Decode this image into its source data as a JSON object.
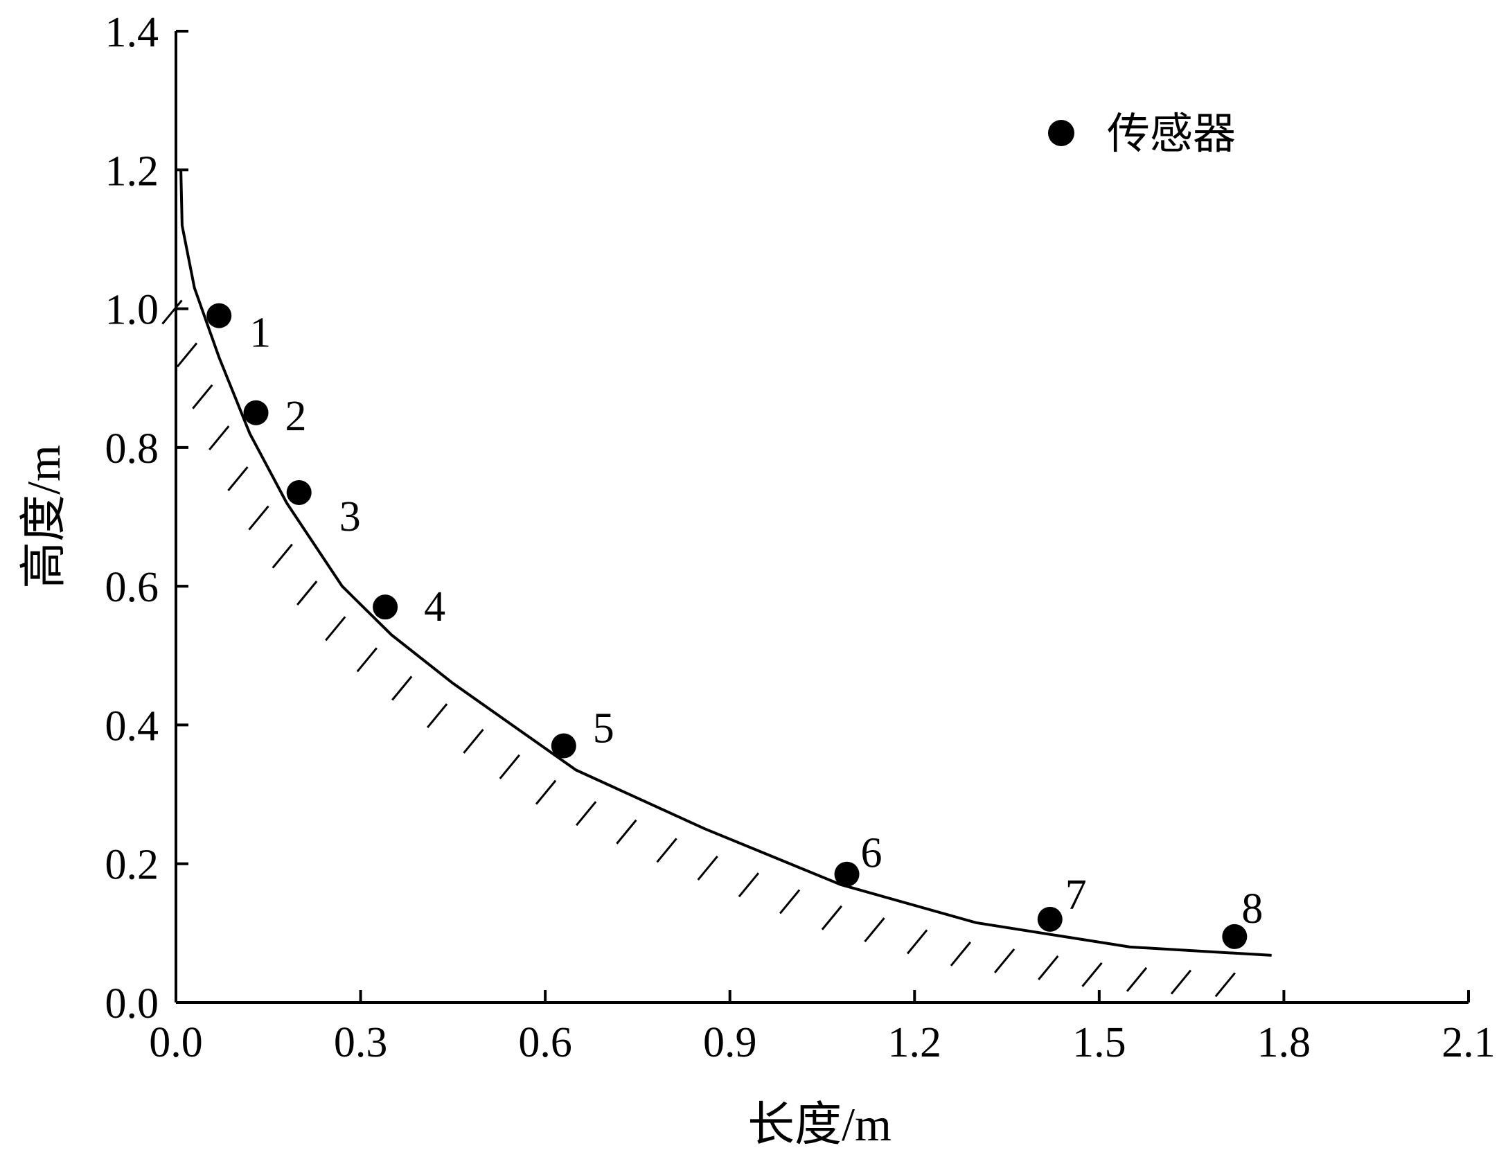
{
  "chart_data": {
    "type": "scatter",
    "xlabel": "长度/m",
    "ylabel": "高度/m",
    "xlim": [
      0,
      2.1
    ],
    "ylim": [
      0,
      1.4
    ],
    "xticks": [
      "0.0",
      "0.3",
      "0.6",
      "0.9",
      "1.2",
      "1.5",
      "1.8",
      "2.1"
    ],
    "yticks": [
      "0.0",
      "0.2",
      "0.4",
      "0.6",
      "0.8",
      "1.0",
      "1.2",
      "1.4"
    ],
    "grid": false,
    "legend": {
      "position": "top-right",
      "label": "传感器"
    },
    "series": [
      {
        "name": "传感器",
        "type": "scatter",
        "points": [
          {
            "label": "1",
            "x": 0.07,
            "y": 0.99
          },
          {
            "label": "2",
            "x": 0.13,
            "y": 0.85
          },
          {
            "label": "3",
            "x": 0.2,
            "y": 0.735
          },
          {
            "label": "4",
            "x": 0.34,
            "y": 0.57
          },
          {
            "label": "5",
            "x": 0.63,
            "y": 0.37
          },
          {
            "label": "6",
            "x": 1.09,
            "y": 0.185
          },
          {
            "label": "7",
            "x": 1.42,
            "y": 0.12
          },
          {
            "label": "8",
            "x": 1.72,
            "y": 0.095
          }
        ]
      },
      {
        "type": "line",
        "x": [
          0.008,
          0.01,
          0.03,
          0.07,
          0.12,
          0.18,
          0.27,
          0.35,
          0.45,
          0.65,
          0.86,
          1.08,
          1.3,
          1.55,
          1.78
        ],
        "y": [
          1.2,
          1.12,
          1.03,
          0.93,
          0.82,
          0.72,
          0.6,
          0.53,
          0.46,
          0.335,
          0.25,
          0.17,
          0.115,
          0.08,
          0.068
        ]
      }
    ]
  }
}
